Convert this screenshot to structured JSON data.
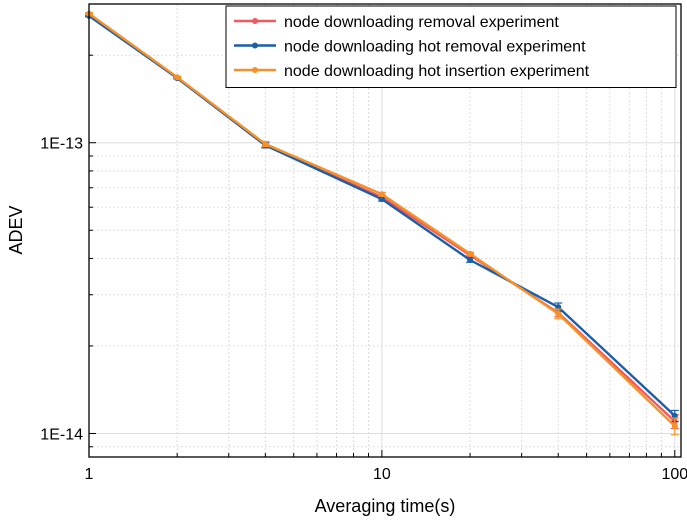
{
  "chart_data": {
    "type": "line",
    "title": "",
    "xlabel": "Averaging time(s)",
    "ylabel": "ADEV",
    "xscale": "log",
    "yscale": "log",
    "xlim": [
      1,
      105
    ],
    "ylim": [
      8.3e-15,
      3e-13
    ],
    "x_ticks": [
      {
        "value": 1,
        "label": "1"
      },
      {
        "value": 10,
        "label": "10"
      },
      {
        "value": 100,
        "label": "100"
      }
    ],
    "y_ticks": [
      {
        "value": 1e-14,
        "label": "1E-14"
      },
      {
        "value": 1e-13,
        "label": "1E-13"
      }
    ],
    "grid": true,
    "legend_position": "top-right",
    "x": [
      1,
      2,
      4,
      10,
      20,
      40,
      100
    ],
    "series": [
      {
        "name": "node downloading removal experiment",
        "color": "#f0595d",
        "values": [
          2.75e-13,
          1.67e-13,
          9.8e-14,
          6.5e-14,
          4.1e-14,
          2.6e-14,
          1.1e-14
        ],
        "errors": [
          2e-15,
          1e-15,
          2e-15,
          1e-15,
          5e-16,
          8e-16,
          6e-16
        ]
      },
      {
        "name": "node downloading hot removal experiment",
        "color": "#1a5fa8",
        "values": [
          2.73e-13,
          1.67e-13,
          9.8e-14,
          6.4e-14,
          3.95e-14,
          2.72e-14,
          1.15e-14
        ],
        "errors": [
          2e-15,
          1e-15,
          2e-15,
          1e-15,
          7e-16,
          9e-16,
          5e-16
        ]
      },
      {
        "name": "node downloading hot insertion experiment",
        "color": "#f5912a",
        "values": [
          2.78e-13,
          1.68e-13,
          9.9e-14,
          6.65e-14,
          4.15e-14,
          2.58e-14,
          1.06e-14
        ],
        "errors": [
          2e-15,
          1e-15,
          2e-15,
          1e-15,
          5e-16,
          1e-15,
          7e-16
        ]
      }
    ]
  }
}
